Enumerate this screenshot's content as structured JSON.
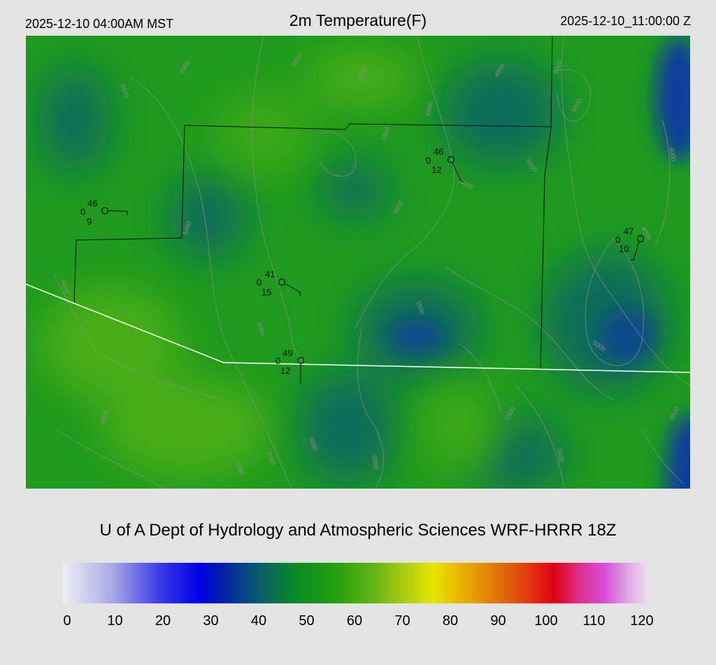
{
  "header": {
    "local_time": "2025-12-10 04:00AM MST",
    "title": "2m Temperature(F)",
    "valid_time": "2025-12-10_11:00:00 Z"
  },
  "footer": {
    "credit": "U of A Dept of Hydrology and Atmospheric Sciences WRF-HRRR 18Z"
  },
  "colorbar": {
    "ticks": [
      "0",
      "10",
      "20",
      "30",
      "40",
      "50",
      "60",
      "70",
      "80",
      "90",
      "100",
      "110",
      "120"
    ],
    "stops": [
      {
        "value": 0,
        "color": "#eeeef6"
      },
      {
        "value": 10,
        "color": "#aaaae6"
      },
      {
        "value": 20,
        "color": "#3a3ae6"
      },
      {
        "value": 28,
        "color": "#0000e8"
      },
      {
        "value": 33,
        "color": "#0522a8"
      },
      {
        "value": 40,
        "color": "#0a5a6e"
      },
      {
        "value": 48,
        "color": "#0a8c22"
      },
      {
        "value": 56,
        "color": "#22a010"
      },
      {
        "value": 64,
        "color": "#66b412"
      },
      {
        "value": 70,
        "color": "#aacc10"
      },
      {
        "value": 76,
        "color": "#e6e600"
      },
      {
        "value": 82,
        "color": "#e8b000"
      },
      {
        "value": 90,
        "color": "#e06e08"
      },
      {
        "value": 97,
        "color": "#e22a10"
      },
      {
        "value": 101,
        "color": "#e00018"
      },
      {
        "value": 106,
        "color": "#e0308a"
      },
      {
        "value": 111,
        "color": "#d84ad8"
      },
      {
        "value": 116,
        "color": "#e0a8e4"
      },
      {
        "value": 120,
        "color": "#ecdcee"
      }
    ]
  },
  "map": {
    "colors": {
      "field": "#1f9a1e",
      "cool": "#0e6c5a",
      "cold": "#0b3d9c",
      "warm": "#4aae12",
      "boundary": "#111111",
      "state_line": "#ffffff",
      "contour": "#8e8e8e"
    },
    "contour_labels": [
      "5500",
      "5000",
      "3000",
      "4500",
      "6000",
      "5500",
      "4500",
      "5000",
      "5500",
      "4000",
      "4500",
      "5000",
      "4000",
      "5500",
      "5000",
      "5500",
      "4000",
      "5500",
      "5000",
      "4500",
      "5500",
      "4000",
      "4000",
      "5000",
      "6000",
      "5000",
      "5500"
    ],
    "stations": [
      {
        "temp": "46",
        "dew": "9",
        "wind": "0"
      },
      {
        "temp": "46",
        "dew": "12",
        "wind": "0"
      },
      {
        "temp": "47",
        "dew": "10",
        "wind": "0"
      },
      {
        "temp": "41",
        "dew": "15",
        "wind": "0"
      },
      {
        "temp": "49",
        "dew": "12",
        "wind": "0"
      }
    ]
  }
}
